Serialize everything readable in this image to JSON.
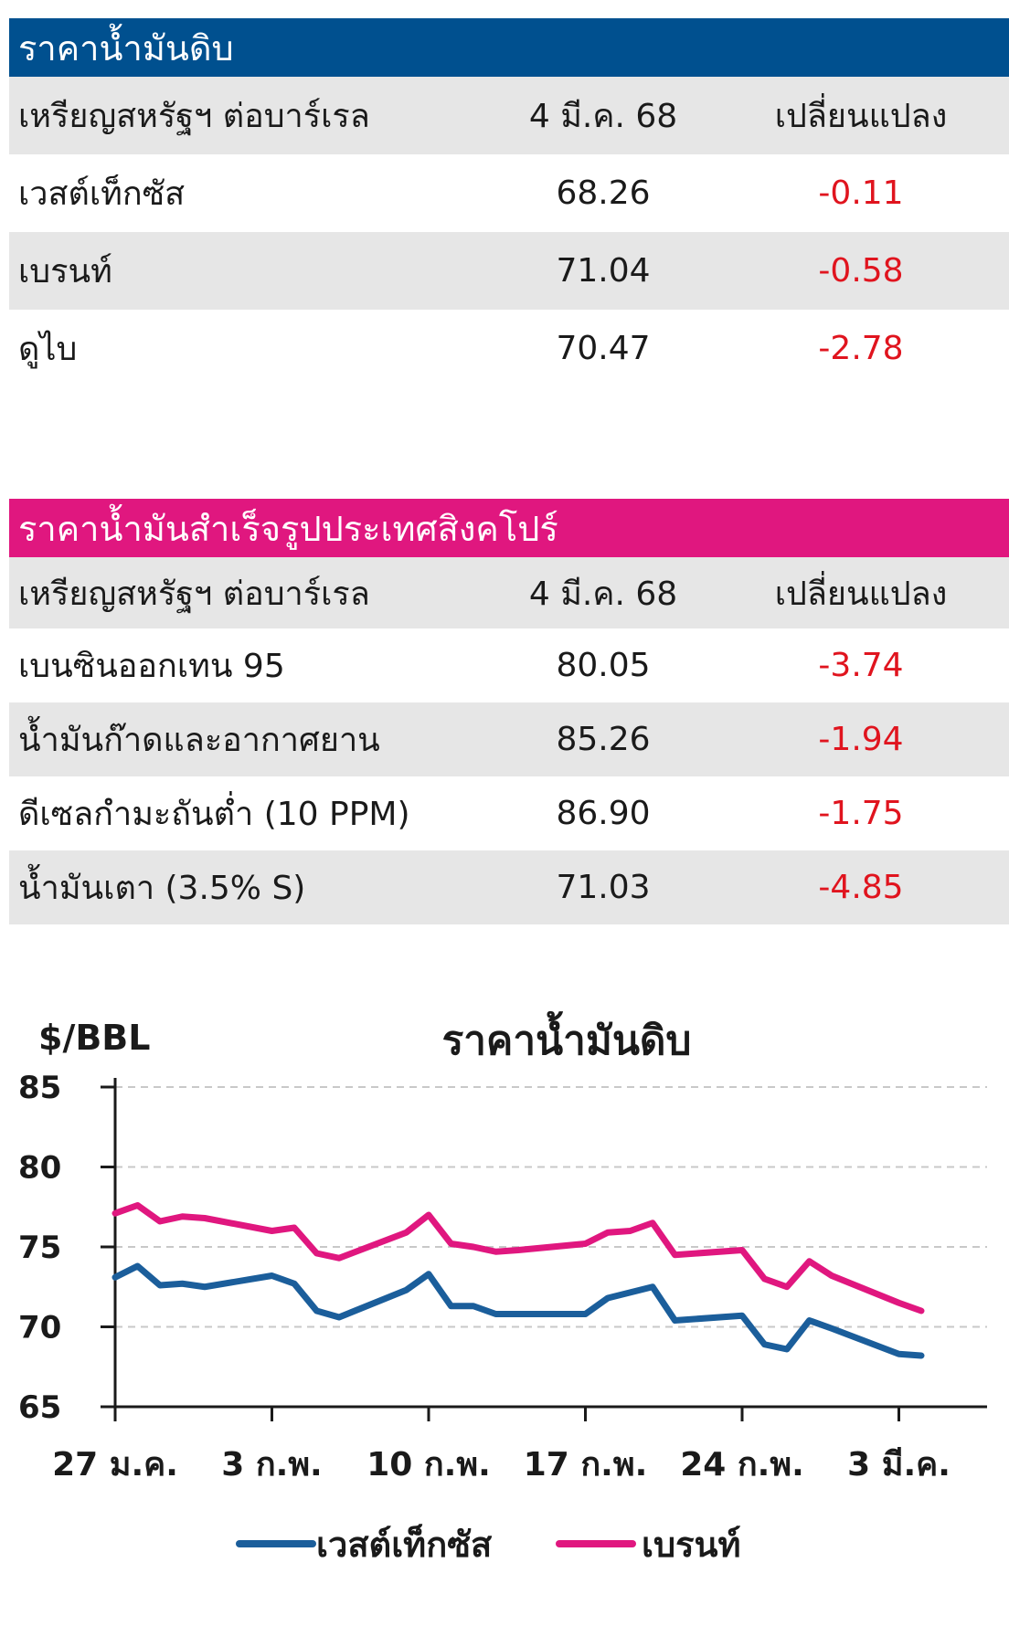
{
  "crude": {
    "title": "ราคาน้ำมันดิบ",
    "headers": {
      "unit": "เหรียญสหรัฐฯ ต่อบาร์เรล",
      "date": "4 มี.ค. 68",
      "change": "เปลี่ยนแปลง"
    },
    "rows": [
      {
        "name": "เวสต์เท็กซัส",
        "price": "68.26",
        "change": "-0.11"
      },
      {
        "name": "เบรนท์",
        "price": "71.04",
        "change": "-0.58"
      },
      {
        "name": "ดูไบ",
        "price": "70.47",
        "change": "-2.78"
      }
    ]
  },
  "refined": {
    "title": "ราคาน้ำมันสำเร็จรูปประเทศสิงคโปร์",
    "headers": {
      "unit": "เหรียญสหรัฐฯ ต่อบาร์เรล",
      "date": "4 มี.ค. 68",
      "change": "เปลี่ยนแปลง"
    },
    "rows": [
      {
        "name": "เบนซินออกเทน 95",
        "price": "80.05",
        "change": "-3.74"
      },
      {
        "name": "น้ำมันก๊าดและอากาศยาน",
        "price": "85.26",
        "change": "-1.94"
      },
      {
        "name": "ดีเซลกำมะถันต่ำ (10 PPM)",
        "price": "86.90",
        "change": "-1.75"
      },
      {
        "name": "น้ำมันเตา (3.5% S)",
        "price": "71.03",
        "change": "-4.85"
      }
    ]
  },
  "colors": {
    "blue": "#00508f",
    "pink": "#e0177f",
    "negative": "#e0141e"
  },
  "chart_data": {
    "type": "line",
    "title": "ราคาน้ำมันดิบ",
    "ylabel": "$/BBL",
    "ylim": [
      65,
      85
    ],
    "yticks": [
      65,
      70,
      75,
      80,
      85
    ],
    "grid": true,
    "legend_position": "bottom",
    "x": [
      0,
      1,
      2,
      3,
      4,
      5,
      6,
      7,
      8,
      9,
      10,
      11,
      12,
      13,
      14,
      15,
      16,
      17,
      18,
      19,
      20,
      21,
      22,
      23,
      24,
      25,
      26,
      27,
      28,
      29,
      30,
      31,
      32,
      33,
      34
    ],
    "xticks": [
      {
        "x": 0,
        "label": "27 ม.ค."
      },
      {
        "x": 7,
        "label": "3 ก.พ."
      },
      {
        "x": 14,
        "label": "10 ก.พ."
      },
      {
        "x": 21,
        "label": "17 ก.พ."
      },
      {
        "x": 28,
        "label": "24 ก.พ."
      },
      {
        "x": 35,
        "label": "3 มี.ค."
      }
    ],
    "series": [
      {
        "name": "เวสต์เท็กซัส",
        "color": "#1b5e9b",
        "x": [
          0,
          1,
          2,
          3,
          4,
          7,
          8,
          9,
          10,
          13,
          14,
          15,
          16,
          17,
          18,
          21,
          22,
          24,
          25,
          28,
          29,
          30,
          31,
          32,
          35,
          36
        ],
        "values": [
          73.1,
          73.8,
          72.6,
          72.7,
          72.5,
          73.2,
          72.7,
          71.0,
          70.6,
          72.3,
          73.3,
          71.3,
          71.3,
          70.8,
          70.8,
          70.8,
          71.8,
          72.5,
          70.4,
          70.7,
          68.9,
          68.6,
          70.4,
          69.9,
          68.3,
          68.2
        ]
      },
      {
        "name": "เบรนท์",
        "color": "#e0177f",
        "x": [
          0,
          1,
          2,
          3,
          4,
          7,
          8,
          9,
          10,
          13,
          14,
          15,
          16,
          17,
          18,
          21,
          22,
          23,
          24,
          25,
          28,
          29,
          30,
          31,
          32,
          35,
          36
        ],
        "values": [
          77.1,
          77.6,
          76.6,
          76.9,
          76.8,
          76.0,
          76.2,
          74.6,
          74.3,
          75.9,
          77.0,
          75.2,
          75.0,
          74.7,
          74.8,
          75.2,
          75.9,
          76.0,
          76.5,
          74.5,
          74.8,
          73.0,
          72.5,
          74.1,
          73.2,
          71.5,
          71.0
        ]
      }
    ]
  }
}
